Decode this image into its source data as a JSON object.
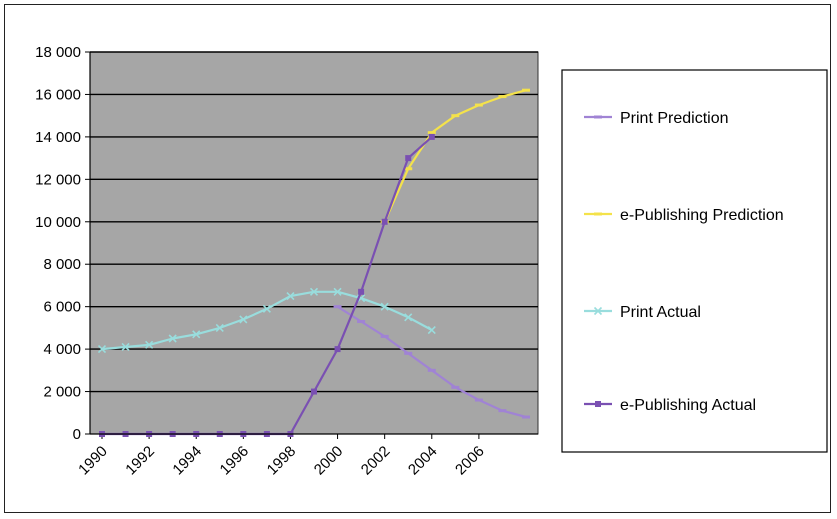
{
  "chart_data": {
    "type": "line",
    "title": "",
    "xlabel": "",
    "ylabel": "",
    "ylim": [
      0,
      18000
    ],
    "y_ticks": [
      0,
      2000,
      4000,
      6000,
      8000,
      10000,
      12000,
      14000,
      16000,
      18000
    ],
    "y_tick_labels": [
      "0",
      "2 000",
      "4 000",
      "6 000",
      "8 000",
      "10 000",
      "12 000",
      "14 000",
      "16 000",
      "18 000"
    ],
    "x_tick_labels": [
      "1990",
      "1992",
      "1994",
      "1996",
      "1998",
      "2000",
      "2002",
      "2004",
      "2006"
    ],
    "plot_background": "#a6a6a6",
    "grid": true,
    "legend_position": "right",
    "series": [
      {
        "name": "Print Prediction",
        "color": "#a083d4",
        "marker": "dash",
        "x": [
          2000,
          2001,
          2002,
          2003,
          2004,
          2005,
          2006,
          2007,
          2008
        ],
        "y": [
          6000,
          5300,
          4600,
          3800,
          3000,
          2200,
          1600,
          1100,
          800
        ]
      },
      {
        "name": "e-Publishing Prediction",
        "color": "#f4e24a",
        "marker": "dash",
        "x": [
          2002,
          2003,
          2004,
          2005,
          2006,
          2007,
          2008
        ],
        "y": [
          10000,
          12500,
          14200,
          15000,
          15500,
          15900,
          16200
        ]
      },
      {
        "name": "Print Actual",
        "color": "#99dddd",
        "marker": "x",
        "x": [
          1990,
          1991,
          1992,
          1993,
          1994,
          1995,
          1996,
          1997,
          1998,
          1999,
          2000,
          2001,
          2002,
          2003,
          2004
        ],
        "y": [
          4000,
          4100,
          4200,
          4500,
          4700,
          5000,
          5400,
          5900,
          6500,
          6700,
          6700,
          6400,
          6000,
          5500,
          4900
        ]
      },
      {
        "name": "e-Publishing Actual",
        "color": "#7a50b2",
        "marker": "square",
        "x": [
          1990,
          1991,
          1992,
          1993,
          1994,
          1995,
          1996,
          1997,
          1998,
          1999,
          2000,
          2001,
          2002,
          2003,
          2004
        ],
        "y": [
          0,
          0,
          0,
          0,
          0,
          0,
          0,
          0,
          0,
          2000,
          4000,
          6700,
          10000,
          13000,
          14000
        ]
      }
    ]
  }
}
